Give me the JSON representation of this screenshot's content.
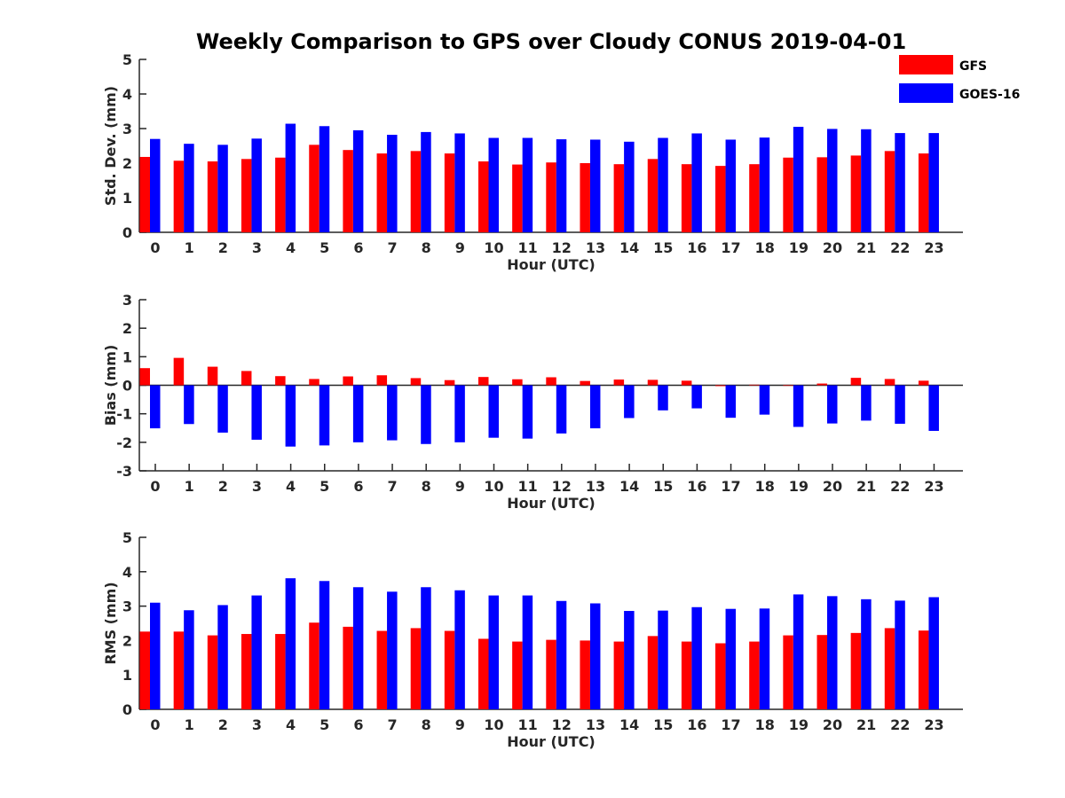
{
  "title": "Weekly Comparison to GPS over Cloudy CONUS 2019-04-01",
  "legend": [
    {
      "name": "GFS",
      "color": "#ff0000"
    },
    {
      "name": "GOES-16",
      "color": "#0000ff"
    }
  ],
  "chart_data": [
    {
      "type": "bar",
      "ylabel": "Std. Dev. (mm)",
      "xlabel": "Hour (UTC)",
      "ylim": [
        0,
        5
      ],
      "yticks": [
        "0",
        "1",
        "2",
        "3",
        "4",
        "5"
      ],
      "categories": [
        "0",
        "1",
        "2",
        "3",
        "4",
        "5",
        "6",
        "7",
        "8",
        "9",
        "10",
        "11",
        "12",
        "13",
        "14",
        "15",
        "16",
        "17",
        "18",
        "19",
        "20",
        "21",
        "22",
        "23"
      ],
      "series": [
        {
          "name": "GFS",
          "color": "#ff0000",
          "values": [
            2.18,
            2.07,
            2.05,
            2.12,
            2.16,
            2.53,
            2.38,
            2.28,
            2.35,
            2.28,
            2.05,
            1.96,
            2.02,
            2.0,
            1.97,
            2.12,
            1.97,
            1.92,
            1.97,
            2.16,
            2.17,
            2.22,
            2.35,
            2.28
          ]
        },
        {
          "name": "GOES-16",
          "color": "#0000ff",
          "values": [
            2.7,
            2.56,
            2.53,
            2.71,
            3.14,
            3.07,
            2.95,
            2.82,
            2.9,
            2.86,
            2.73,
            2.73,
            2.69,
            2.68,
            2.62,
            2.73,
            2.86,
            2.68,
            2.74,
            3.05,
            2.99,
            2.98,
            2.87,
            2.87
          ]
        }
      ]
    },
    {
      "type": "bar",
      "ylabel": "Bias (mm)",
      "xlabel": "Hour (UTC)",
      "ylim": [
        -3,
        3
      ],
      "yticks": [
        "-3",
        "-2",
        "-1",
        "0",
        "1",
        "2",
        "3"
      ],
      "categories": [
        "0",
        "1",
        "2",
        "3",
        "4",
        "5",
        "6",
        "7",
        "8",
        "9",
        "10",
        "11",
        "12",
        "13",
        "14",
        "15",
        "16",
        "17",
        "18",
        "19",
        "20",
        "21",
        "22",
        "23"
      ],
      "series": [
        {
          "name": "GFS",
          "color": "#ff0000",
          "values": [
            0.6,
            0.96,
            0.65,
            0.5,
            0.32,
            0.22,
            0.31,
            0.35,
            0.25,
            0.18,
            0.29,
            0.21,
            0.28,
            0.15,
            0.2,
            0.19,
            0.16,
            -0.03,
            0.02,
            -0.02,
            0.06,
            0.26,
            0.22,
            0.16
          ]
        },
        {
          "name": "GOES-16",
          "color": "#0000ff",
          "values": [
            -1.51,
            -1.36,
            -1.66,
            -1.91,
            -2.15,
            -2.11,
            -2.0,
            -1.93,
            -2.06,
            -2.0,
            -1.84,
            -1.87,
            -1.69,
            -1.51,
            -1.15,
            -0.88,
            -0.81,
            -1.14,
            -1.03,
            -1.46,
            -1.34,
            -1.24,
            -1.35,
            -1.6
          ]
        }
      ]
    },
    {
      "type": "bar",
      "ylabel": "RMS (mm)",
      "xlabel": "Hour (UTC)",
      "ylim": [
        0,
        5
      ],
      "yticks": [
        "0",
        "1",
        "2",
        "3",
        "4",
        "5"
      ],
      "categories": [
        "0",
        "1",
        "2",
        "3",
        "4",
        "5",
        "6",
        "7",
        "8",
        "9",
        "10",
        "11",
        "12",
        "13",
        "14",
        "15",
        "16",
        "17",
        "18",
        "19",
        "20",
        "21",
        "22",
        "23"
      ],
      "series": [
        {
          "name": "GFS",
          "color": "#ff0000",
          "values": [
            2.26,
            2.26,
            2.15,
            2.19,
            2.19,
            2.52,
            2.4,
            2.28,
            2.36,
            2.28,
            2.05,
            1.97,
            2.02,
            2.0,
            1.97,
            2.13,
            1.97,
            1.92,
            1.97,
            2.15,
            2.16,
            2.22,
            2.36,
            2.29
          ]
        },
        {
          "name": "GOES-16",
          "color": "#0000ff",
          "values": [
            3.1,
            2.88,
            3.03,
            3.31,
            3.81,
            3.73,
            3.55,
            3.42,
            3.55,
            3.46,
            3.31,
            3.31,
            3.15,
            3.08,
            2.86,
            2.87,
            2.97,
            2.92,
            2.93,
            3.34,
            3.29,
            3.2,
            3.16,
            3.26
          ]
        }
      ]
    }
  ]
}
